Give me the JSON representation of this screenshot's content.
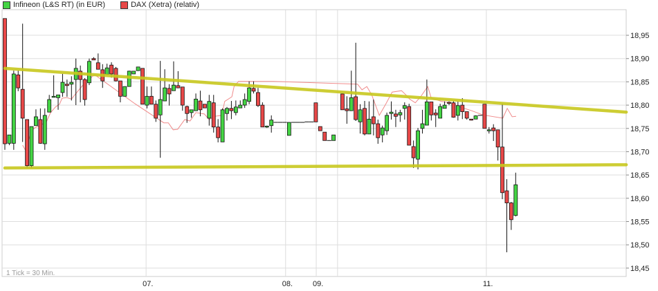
{
  "legend": [
    {
      "label": "Infineon (L&S RT) (in EUR)",
      "color": "#44d444"
    },
    {
      "label": "DAX (Xetra) (relativ)",
      "color": "#e84848"
    }
  ],
  "note": "1 Tick = 30 Min.",
  "chart_data": {
    "type": "candlestick",
    "title": "",
    "tick_interval": "30 Min.",
    "ylim": [
      18.432,
      19.005
    ],
    "xlim": [
      -0.5,
      139.9
    ],
    "y_ticks": [
      18.45,
      18.5,
      18.55,
      18.6,
      18.65,
      18.7,
      18.75,
      18.8,
      18.85,
      18.9,
      18.95
    ],
    "y_tick_labels": [
      "18,45",
      "18,50",
      "18,55",
      "18,60",
      "18,65",
      "18,70",
      "18,75",
      "18,80",
      "18,85",
      "18,90",
      "18,95"
    ],
    "x_ticks": [
      {
        "label": "07.",
        "at": 31.8
      },
      {
        "label": "08.",
        "at": 63.2
      },
      {
        "label": "09.",
        "at": 70.1
      },
      {
        "label": "",
        "at": 74.9
      },
      {
        "label": "11.",
        "at": 108.4
      }
    ],
    "grid": true,
    "colors": {
      "up": "#44d444",
      "down": "#e84848",
      "dax": "#f08a8a",
      "trendline": "#c8c81e"
    },
    "candle_fields": [
      "open",
      "high",
      "low",
      "close"
    ],
    "candles": [
      [
        18.986,
        18.986,
        18.704,
        18.717
      ],
      [
        18.718,
        18.736,
        18.714,
        18.736
      ],
      [
        18.718,
        18.874,
        18.704,
        18.867
      ],
      [
        18.865,
        18.874,
        18.83,
        18.837
      ],
      [
        18.834,
        18.975,
        18.721,
        18.772
      ],
      [
        18.769,
        18.769,
        18.665,
        18.67
      ],
      [
        18.67,
        18.754,
        18.665,
        18.754
      ],
      [
        18.756,
        18.791,
        18.756,
        18.775
      ],
      [
        18.769,
        18.793,
        18.717,
        18.718
      ],
      [
        18.717,
        18.793,
        18.704,
        18.778
      ],
      [
        18.785,
        18.822,
        18.785,
        18.812
      ],
      [
        18.818,
        18.864,
        18.818,
        18.819
      ],
      [
        18.816,
        18.822,
        18.79,
        18.822
      ],
      [
        18.827,
        18.867,
        18.818,
        18.849
      ],
      [
        18.845,
        18.855,
        18.818,
        18.842
      ],
      [
        18.845,
        18.862,
        18.81,
        18.849
      ],
      [
        18.855,
        18.9,
        18.8,
        18.879
      ],
      [
        18.873,
        18.885,
        18.806,
        18.855
      ],
      [
        18.855,
        18.858,
        18.799,
        18.812
      ],
      [
        18.848,
        18.9,
        18.843,
        18.894
      ],
      [
        18.9,
        18.903,
        18.897,
        18.897
      ],
      [
        18.891,
        18.911,
        18.877,
        18.877
      ],
      [
        18.876,
        18.888,
        18.837,
        18.852
      ],
      [
        18.866,
        18.889,
        18.865,
        18.88
      ],
      [
        18.886,
        18.892,
        18.859,
        18.867
      ],
      [
        18.879,
        18.882,
        18.851,
        18.852
      ],
      [
        18.852,
        18.852,
        18.806,
        18.819
      ],
      [
        18.819,
        18.84,
        18.819,
        18.84
      ],
      [
        18.84,
        18.874,
        18.84,
        18.873
      ],
      [
        18.867,
        18.873,
        18.867,
        18.873
      ],
      [
        18.874,
        18.882,
        18.874,
        18.882
      ],
      [
        18.879,
        18.879,
        18.802,
        18.802
      ],
      [
        18.8,
        18.84,
        18.793,
        18.819
      ],
      [
        18.819,
        18.84,
        18.802,
        18.802
      ],
      [
        18.802,
        18.81,
        18.764,
        18.772
      ],
      [
        18.779,
        18.895,
        18.687,
        18.812
      ],
      [
        18.809,
        18.877,
        18.809,
        18.837
      ],
      [
        18.836,
        18.845,
        18.799,
        18.824
      ],
      [
        18.831,
        18.894,
        18.831,
        18.843
      ],
      [
        18.842,
        18.873,
        18.837,
        18.837
      ],
      [
        18.839,
        18.839,
        18.788,
        18.8
      ],
      [
        18.797,
        18.799,
        18.762,
        18.782
      ],
      [
        18.784,
        18.79,
        18.773,
        18.79
      ],
      [
        18.788,
        18.825,
        18.788,
        18.813
      ],
      [
        18.809,
        18.831,
        18.776,
        18.79
      ],
      [
        18.802,
        18.802,
        18.794,
        18.794
      ],
      [
        18.772,
        18.822,
        18.756,
        18.808
      ],
      [
        18.805,
        18.822,
        18.741,
        18.753
      ],
      [
        18.753,
        18.77,
        18.72,
        18.73
      ],
      [
        18.721,
        18.793,
        18.721,
        18.79
      ],
      [
        18.782,
        18.796,
        18.767,
        18.793
      ],
      [
        18.793,
        18.809,
        18.77,
        18.788
      ],
      [
        18.784,
        18.81,
        18.778,
        18.796
      ],
      [
        18.794,
        18.81,
        18.794,
        18.8
      ],
      [
        18.8,
        18.825,
        18.794,
        18.812
      ],
      [
        18.808,
        18.851,
        18.802,
        18.837
      ],
      [
        18.836,
        18.851,
        18.825,
        18.83
      ],
      [
        18.827,
        18.837,
        18.796,
        18.799
      ],
      [
        18.8,
        18.806,
        18.753,
        18.753
      ],
      [
        18.753,
        18.756,
        18.751,
        18.755
      ],
      [
        18.756,
        18.778,
        18.741,
        18.768
      ],
      [
        18.763,
        18.763,
        18.763,
        18.763
      ],
      [
        18.763,
        18.763,
        18.763,
        18.763
      ],
      [
        18.763,
        18.763,
        18.763,
        18.763
      ],
      [
        18.735,
        18.763,
        18.735,
        18.763
      ],
      [
        18.763,
        18.763,
        18.763,
        18.763
      ],
      [
        18.763,
        18.763,
        18.763,
        18.763
      ],
      [
        18.763,
        18.763,
        18.763,
        18.763
      ],
      [
        18.764,
        18.764,
        18.764,
        18.764
      ],
      [
        18.764,
        18.764,
        18.764,
        18.764
      ],
      [
        18.805,
        18.805,
        18.764,
        18.764
      ],
      [
        18.754,
        18.754,
        18.745,
        18.745
      ],
      [
        18.742,
        18.742,
        18.724,
        18.724
      ],
      [
        18.724,
        18.724,
        18.724,
        18.724
      ],
      [
        18.724,
        18.736,
        18.724,
        18.736
      ],
      null,
      [
        18.824,
        18.825,
        18.79,
        18.79
      ],
      [
        18.792,
        18.819,
        18.76,
        18.788
      ],
      [
        18.788,
        18.874,
        18.788,
        18.816
      ],
      [
        18.818,
        18.934,
        18.766,
        18.769
      ],
      [
        18.764,
        18.802,
        18.739,
        18.79
      ],
      [
        18.793,
        18.809,
        18.735,
        18.738
      ],
      [
        18.738,
        18.808,
        18.738,
        18.77
      ],
      [
        18.775,
        18.812,
        18.735,
        18.76
      ],
      [
        18.76,
        18.769,
        18.717,
        18.73
      ],
      [
        18.736,
        18.756,
        18.72,
        18.751
      ],
      [
        18.745,
        18.784,
        18.736,
        18.778
      ],
      [
        18.782,
        18.808,
        18.769,
        18.785
      ],
      [
        18.781,
        18.79,
        18.753,
        18.776
      ],
      [
        18.779,
        18.79,
        18.764,
        18.784
      ],
      [
        18.793,
        18.806,
        18.769,
        18.799
      ],
      [
        18.797,
        18.803,
        18.714,
        18.714
      ],
      [
        18.711,
        18.724,
        18.665,
        18.687
      ],
      [
        18.684,
        18.751,
        18.662,
        18.745
      ],
      [
        18.75,
        18.79,
        18.739,
        18.76
      ],
      [
        18.757,
        18.855,
        18.757,
        18.807
      ],
      [
        18.807,
        18.807,
        18.767,
        18.779
      ],
      [
        18.783,
        18.791,
        18.753,
        18.779
      ],
      [
        18.772,
        18.803,
        18.772,
        18.797
      ],
      [
        18.793,
        18.808,
        18.793,
        18.8
      ],
      [
        18.806,
        18.808,
        18.8,
        18.805
      ],
      [
        18.805,
        18.809,
        18.773,
        18.774
      ],
      [
        18.778,
        18.808,
        18.767,
        18.799
      ],
      [
        18.8,
        18.815,
        18.77,
        18.786
      ],
      [
        18.786,
        18.786,
        18.769,
        18.772
      ],
      [
        18.77,
        18.77,
        18.767,
        18.768
      ],
      [
        18.77,
        18.778,
        18.77,
        18.777
      ],
      [
        18.778,
        18.778,
        18.778,
        18.778
      ],
      [
        18.802,
        18.802,
        18.75,
        18.75
      ],
      [
        18.747,
        18.753,
        18.739,
        18.747
      ],
      [
        18.751,
        18.759,
        18.723,
        18.745
      ],
      [
        18.747,
        18.747,
        18.681,
        18.71
      ],
      [
        18.71,
        18.803,
        18.598,
        18.612
      ],
      [
        18.616,
        18.641,
        18.484,
        18.59
      ],
      [
        18.59,
        18.592,
        18.532,
        18.554
      ],
      [
        18.563,
        18.655,
        18.561,
        18.629
      ]
    ],
    "dax_series": [
      [
        4.0,
        18.714
      ],
      [
        4.7,
        18.702
      ],
      [
        5.9,
        18.744
      ],
      [
        6.7,
        18.751
      ],
      [
        9.3,
        18.763
      ],
      [
        10.3,
        18.784
      ],
      [
        11.4,
        18.796
      ],
      [
        12.3,
        18.802
      ],
      [
        12.9,
        18.815
      ],
      [
        14.0,
        18.816
      ],
      [
        15.0,
        18.813
      ],
      [
        16.0,
        18.825
      ],
      [
        17.3,
        18.84
      ],
      [
        18.8,
        18.855
      ],
      [
        20.2,
        18.865
      ],
      [
        20.7,
        18.862
      ],
      [
        29.3,
        18.803
      ],
      [
        35.8,
        18.762
      ],
      [
        36.8,
        18.762
      ],
      [
        37.9,
        18.747
      ],
      [
        38.9,
        18.748
      ],
      [
        40.5,
        18.769
      ],
      [
        41.7,
        18.766
      ],
      [
        43.0,
        18.784
      ],
      [
        44.9,
        18.781
      ],
      [
        46.0,
        18.769
      ],
      [
        47.2,
        18.776
      ],
      [
        48.8,
        18.778
      ],
      [
        49.5,
        18.808
      ],
      [
        51.1,
        18.818
      ],
      [
        51.6,
        18.84
      ],
      [
        52.6,
        18.851
      ],
      [
        60.4,
        18.851
      ],
      [
        79.4,
        18.845
      ],
      [
        80.4,
        18.833
      ],
      [
        81.5,
        18.84
      ],
      [
        82.6,
        18.822
      ],
      [
        84.3,
        18.778
      ],
      [
        85.8,
        18.803
      ],
      [
        87.2,
        18.828
      ],
      [
        89.3,
        18.831
      ],
      [
        90.3,
        18.822
      ],
      [
        91.1,
        18.813
      ],
      [
        92.4,
        18.805
      ],
      [
        93.6,
        18.818
      ],
      [
        95.2,
        18.84
      ],
      [
        96.0,
        18.815
      ],
      [
        98.3,
        18.808
      ],
      [
        100.5,
        18.805
      ],
      [
        102.5,
        18.796
      ],
      [
        105.1,
        18.788
      ],
      [
        107.6,
        18.779
      ],
      [
        112.1,
        18.772
      ],
      [
        113.1,
        18.793
      ],
      [
        114.2,
        18.775
      ],
      [
        115.1,
        18.776
      ]
    ],
    "trendlines": [
      {
        "from": [
          0,
          18.879
        ],
        "to": [
          139.9,
          18.785
        ]
      },
      {
        "from": [
          0,
          18.665
        ],
        "to": [
          139.9,
          18.672
        ]
      }
    ]
  }
}
